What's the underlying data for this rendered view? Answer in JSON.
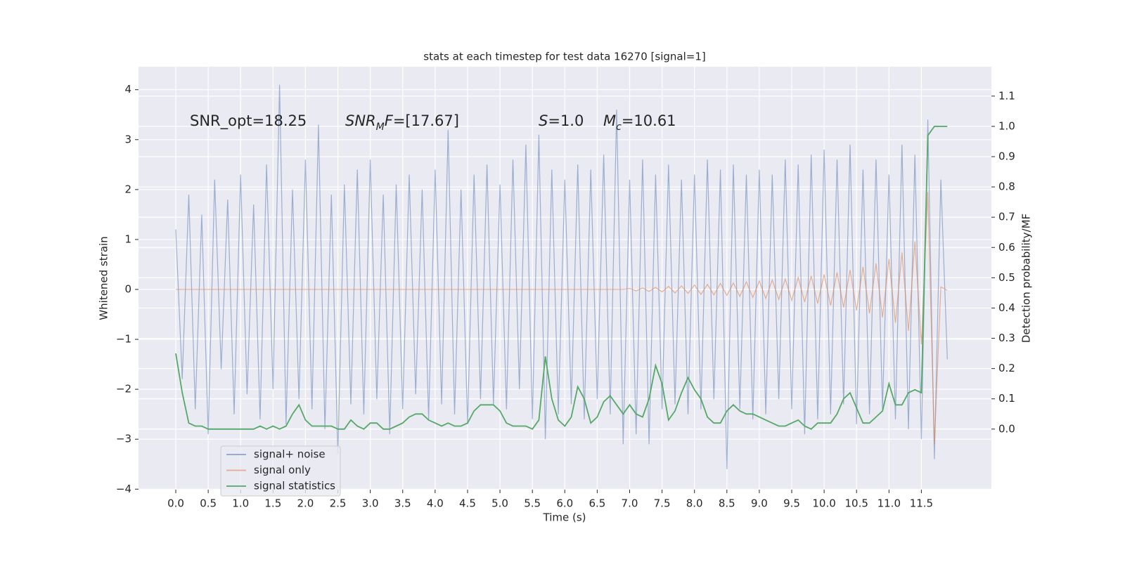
{
  "chart_data": {
    "type": "line",
    "title": "stats at each timestep for test data 16270 [signal=1]",
    "x_label": "Time (s)",
    "y_label": "Whitened strain",
    "y2_label": "Detection probability/MF",
    "annotations": [
      [
        {
          "text": "SNR_opt=18.25",
          "style": "normal"
        }
      ],
      [
        {
          "text": "SNR",
          "style": "italic"
        },
        {
          "text": "M",
          "style": "italic-sub"
        },
        {
          "text": "F",
          "style": "italic"
        },
        {
          "text": "=[17.67]",
          "style": "normal"
        }
      ],
      [
        {
          "text": "S",
          "style": "italic"
        },
        {
          "text": "=1.0",
          "style": "normal"
        }
      ],
      [
        {
          "text": "M",
          "style": "italic"
        },
        {
          "text": "c",
          "style": "italic-sub"
        },
        {
          "text": "=10.61",
          "style": "normal"
        }
      ]
    ],
    "x": [
      0.0,
      0.1,
      0.2,
      0.3,
      0.4,
      0.5,
      0.6,
      0.7,
      0.8,
      0.9,
      1.0,
      1.1,
      1.2,
      1.3,
      1.4,
      1.5,
      1.6,
      1.7,
      1.8,
      1.9,
      2.0,
      2.1,
      2.2,
      2.3,
      2.4,
      2.5,
      2.6,
      2.7,
      2.8,
      2.9,
      3.0,
      3.1,
      3.2,
      3.3,
      3.4,
      3.5,
      3.6,
      3.7,
      3.8,
      3.9,
      4.0,
      4.1,
      4.2,
      4.3,
      4.4,
      4.5,
      4.6,
      4.7,
      4.8,
      4.9,
      5.0,
      5.1,
      5.2,
      5.3,
      5.4,
      5.5,
      5.6,
      5.7,
      5.8,
      5.9,
      6.0,
      6.1,
      6.2,
      6.3,
      6.4,
      6.5,
      6.6,
      6.7,
      6.8,
      6.9,
      7.0,
      7.1,
      7.2,
      7.3,
      7.4,
      7.5,
      7.6,
      7.7,
      7.8,
      7.9,
      8.0,
      8.1,
      8.2,
      8.3,
      8.4,
      8.5,
      8.6,
      8.7,
      8.8,
      8.9,
      9.0,
      9.1,
      9.2,
      9.3,
      9.4,
      9.5,
      9.6,
      9.7,
      9.8,
      9.9,
      10.0,
      10.1,
      10.2,
      10.3,
      10.4,
      10.5,
      10.6,
      10.7,
      10.8,
      10.9,
      11.0,
      11.1,
      11.2,
      11.3,
      11.4,
      11.5,
      11.6,
      11.7,
      11.8,
      11.9
    ],
    "series": [
      {
        "name": "signal+ noise",
        "color": "#4c72b0",
        "axis": "y",
        "values": [
          1.2,
          -1.8,
          1.9,
          -2.4,
          1.5,
          -2.9,
          2.2,
          -1.6,
          1.8,
          -2.5,
          2.3,
          -2.1,
          1.7,
          -2.6,
          2.5,
          -2.0,
          4.1,
          -2.7,
          2.0,
          -2.2,
          2.6,
          -2.4,
          3.3,
          -2.8,
          1.9,
          -3.3,
          2.1,
          -2.3,
          2.4,
          -2.5,
          2.6,
          -2.2,
          1.9,
          -2.9,
          2.1,
          -2.4,
          2.3,
          -2.1,
          2.0,
          -2.6,
          2.4,
          -2.3,
          3.2,
          -2.5,
          2.0,
          -2.7,
          2.3,
          -2.2,
          2.5,
          -2.3,
          2.1,
          -2.4,
          2.6,
          -2.0,
          2.9,
          -2.6,
          3.1,
          -3.0,
          2.4,
          -2.5,
          2.2,
          -2.3,
          2.5,
          -2.6,
          2.4,
          -2.2,
          2.7,
          -2.5,
          3.6,
          -3.1,
          2.2,
          -2.9,
          2.6,
          -3.1,
          2.3,
          -2.4,
          2.5,
          -2.3,
          2.2,
          -2.5,
          2.3,
          -2.4,
          2.6,
          -2.2,
          2.4,
          -3.6,
          2.5,
          -2.4,
          2.3,
          -2.6,
          2.4,
          -2.5,
          2.3,
          -2.2,
          2.6,
          -2.4,
          2.5,
          -2.9,
          2.7,
          -2.6,
          2.8,
          -2.5,
          2.6,
          -2.3,
          2.9,
          -2.7,
          2.4,
          -2.5,
          2.6,
          -2.4,
          2.3,
          -2.6,
          2.9,
          -2.8,
          2.7,
          -3.0,
          3.4,
          -3.4,
          2.2,
          -1.4
        ]
      },
      {
        "name": "signal only",
        "color": "#dd8452",
        "axis": "y",
        "values": [
          0,
          0,
          0,
          0,
          0,
          0,
          0,
          0,
          0,
          0,
          0,
          0,
          0,
          0,
          0,
          0,
          0,
          0,
          0,
          0,
          0,
          0,
          0,
          0,
          0,
          0,
          0,
          0,
          0,
          0,
          0,
          0,
          0,
          0,
          0,
          0,
          0,
          0,
          0,
          0,
          0,
          0,
          0,
          0,
          0,
          0,
          0,
          0,
          0,
          0,
          0,
          0,
          0,
          0,
          0,
          0,
          0,
          0,
          0,
          0,
          0,
          0,
          0,
          0,
          0,
          0,
          0,
          0,
          0,
          0,
          0.02,
          -0.03,
          0.03,
          -0.04,
          0.04,
          -0.05,
          0.06,
          -0.07,
          0.07,
          -0.08,
          0.09,
          -0.1,
          0.1,
          -0.11,
          0.12,
          -0.12,
          0.13,
          -0.14,
          0.15,
          -0.16,
          0.17,
          -0.18,
          0.19,
          -0.2,
          0.21,
          -0.22,
          0.24,
          -0.25,
          0.27,
          -0.28,
          0.3,
          -0.32,
          0.34,
          -0.36,
          0.39,
          -0.42,
          0.45,
          -0.48,
          0.52,
          -0.56,
          0.61,
          -0.67,
          0.74,
          -0.83,
          0.96,
          -1.1,
          1.95,
          -3.1,
          0.05,
          -0.02
        ]
      },
      {
        "name": "signal statistics",
        "color": "#55a868",
        "axis": "y2",
        "values": [
          0.25,
          0.12,
          0.02,
          0.01,
          0.01,
          0.0,
          0.0,
          0.0,
          0.0,
          0.0,
          0.0,
          0.0,
          0.0,
          0.01,
          0.0,
          0.01,
          0.0,
          0.01,
          0.05,
          0.08,
          0.03,
          0.01,
          0.01,
          0.01,
          0.01,
          0.0,
          0.0,
          0.03,
          0.01,
          0.0,
          0.02,
          0.02,
          0.0,
          0.0,
          0.01,
          0.02,
          0.04,
          0.05,
          0.05,
          0.03,
          0.02,
          0.01,
          0.02,
          0.01,
          0.01,
          0.02,
          0.06,
          0.08,
          0.08,
          0.08,
          0.06,
          0.02,
          0.01,
          0.01,
          0.01,
          0.0,
          0.03,
          0.24,
          0.1,
          0.03,
          0.01,
          0.04,
          0.14,
          0.1,
          0.02,
          0.04,
          0.09,
          0.11,
          0.08,
          0.05,
          0.08,
          0.05,
          0.04,
          0.1,
          0.21,
          0.15,
          0.03,
          0.06,
          0.12,
          0.17,
          0.13,
          0.1,
          0.04,
          0.02,
          0.02,
          0.06,
          0.08,
          0.06,
          0.05,
          0.05,
          0.04,
          0.03,
          0.02,
          0.01,
          0.01,
          0.02,
          0.03,
          0.01,
          0.0,
          0.02,
          0.02,
          0.02,
          0.05,
          0.1,
          0.12,
          0.07,
          0.02,
          0.02,
          0.04,
          0.06,
          0.15,
          0.08,
          0.08,
          0.12,
          0.13,
          0.12,
          0.97,
          1.0,
          1.0,
          1.0
        ]
      }
    ],
    "xlim": [
      -0.575,
      12.58
    ],
    "xticks": [
      {
        "value": 0,
        "label": "0.0"
      },
      0.5,
      {
        "value": 1,
        "label": "1.0"
      },
      1.5,
      {
        "value": 2,
        "label": "2.0"
      },
      2.5,
      {
        "value": 3,
        "label": "3.0"
      },
      3.5,
      {
        "value": 4,
        "label": "4.0"
      },
      4.5,
      {
        "value": 5,
        "label": "5.0"
      },
      5.5,
      {
        "value": 6,
        "label": "6.0"
      },
      6.5,
      {
        "value": 7,
        "label": "7.0"
      },
      7.5,
      {
        "value": 8,
        "label": "8.0"
      },
      8.5,
      {
        "value": 9,
        "label": "9.0"
      },
      9.5,
      {
        "value": 10,
        "label": "10.0"
      },
      10.5,
      {
        "value": 11,
        "label": "11.0"
      },
      11.5
    ],
    "ylim": [
      -4.01,
      4.46
    ],
    "yticks": [
      {
        "value": -4,
        "label": "−4"
      },
      {
        "value": -3,
        "label": "−3"
      },
      {
        "value": -2,
        "label": "−2"
      },
      {
        "value": -1,
        "label": "−1"
      },
      0,
      1,
      2,
      3,
      4
    ],
    "y2lim": [
      -0.2,
      1.197
    ],
    "y2ticks": [
      {
        "value": 0,
        "label": "0.0"
      },
      0.1,
      0.2,
      0.3,
      0.4,
      0.5,
      0.6,
      0.7,
      0.8,
      0.9,
      {
        "value": 1,
        "label": "1.0"
      },
      1.1
    ],
    "grid": true,
    "legend": "lower left"
  }
}
